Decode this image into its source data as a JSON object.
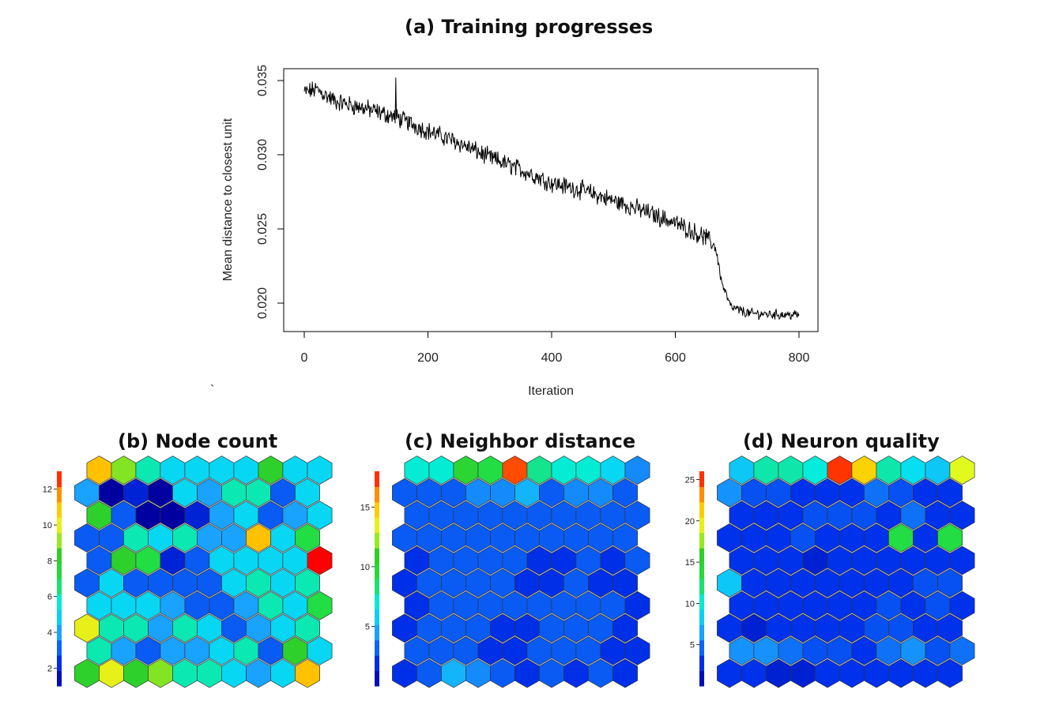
{
  "titles": {
    "a": "(a) Training progresses",
    "b": "(b) Node count",
    "c": "(c) Neighbor distance",
    "d": "(d) Neuron quality"
  },
  "stray_mark": "`",
  "chart_data": [
    {
      "type": "line",
      "title": "(a) Training progresses",
      "xlabel": "Iteration",
      "ylabel": "Mean distance to closest unit",
      "xlim": [
        0,
        800
      ],
      "ylim": [
        0.02,
        0.035
      ],
      "xticks": [
        "0",
        "200",
        "400",
        "600",
        "800"
      ],
      "yticks": [
        "0.020",
        "0.025",
        "0.030",
        "0.035"
      ],
      "color": "#000000",
      "trend": [
        [
          0,
          0.0342
        ],
        [
          20,
          0.0344
        ],
        [
          50,
          0.0336
        ],
        [
          100,
          0.0331
        ],
        [
          150,
          0.0325
        ],
        [
          200,
          0.0316
        ],
        [
          250,
          0.0308
        ],
        [
          300,
          0.0298
        ],
        [
          350,
          0.029
        ],
        [
          400,
          0.0281
        ],
        [
          450,
          0.0276
        ],
        [
          500,
          0.0269
        ],
        [
          550,
          0.0262
        ],
        [
          600,
          0.0254
        ],
        [
          650,
          0.0244
        ],
        [
          665,
          0.0238
        ],
        [
          675,
          0.0214
        ],
        [
          690,
          0.0197
        ],
        [
          720,
          0.0193
        ],
        [
          800,
          0.0192
        ]
      ],
      "noise": 0.0005
    },
    {
      "type": "heatmap",
      "title": "(b) Node count",
      "grid": "hexagonal 10 x 10",
      "scale_ticks": [
        "2",
        "4",
        "6",
        "8",
        "10",
        "12"
      ],
      "scale_range": [
        1,
        13
      ],
      "values": [
        [
          8,
          10,
          8,
          9,
          6,
          6,
          5,
          4,
          5,
          11
        ],
        [
          6,
          4,
          3,
          4,
          4,
          5,
          6,
          3,
          8,
          5
        ],
        [
          10,
          6,
          6,
          4,
          6,
          5,
          3,
          4,
          5,
          6
        ],
        [
          5,
          5,
          5,
          4,
          3,
          3,
          4,
          6,
          5,
          7
        ],
        [
          3,
          5,
          3,
          3,
          3,
          3,
          5,
          6,
          5,
          6
        ],
        [
          3,
          8,
          7,
          2,
          3,
          5,
          5,
          5,
          5,
          13
        ],
        [
          3,
          3,
          6,
          5,
          6,
          4,
          4,
          11,
          5,
          7
        ],
        [
          8,
          3,
          1,
          1,
          2,
          4,
          5,
          3,
          4,
          5
        ],
        [
          4,
          1,
          2,
          1,
          5,
          4,
          6,
          6,
          3,
          5
        ],
        [
          11,
          9,
          6,
          5,
          5,
          5,
          5,
          8,
          5,
          5
        ]
      ]
    },
    {
      "type": "heatmap",
      "title": "(c) Neighbor distance",
      "grid": "hexagonal 10 x 10",
      "scale_ticks": [
        "5",
        "10",
        "15"
      ],
      "scale_range": [
        0,
        18
      ],
      "values": [
        [
          2,
          3,
          5,
          4,
          3,
          2,
          3,
          2,
          3,
          2
        ],
        [
          3,
          3,
          3,
          2,
          2,
          3,
          3,
          3,
          2,
          2
        ],
        [
          2,
          3,
          3,
          3,
          2,
          2,
          3,
          3,
          3,
          2
        ],
        [
          2,
          3,
          3,
          3,
          3,
          3,
          3,
          3,
          3,
          2
        ],
        [
          2,
          3,
          3,
          3,
          3,
          2,
          2,
          3,
          2,
          2
        ],
        [
          2,
          3,
          3,
          3,
          3,
          2,
          2,
          3,
          2,
          3
        ],
        [
          3,
          3,
          3,
          3,
          3,
          3,
          3,
          3,
          3,
          3
        ],
        [
          3,
          3,
          3,
          3,
          3,
          3,
          3,
          3,
          3,
          3
        ],
        [
          3,
          3,
          3,
          4,
          4,
          5,
          3,
          4,
          4,
          3
        ],
        [
          7,
          7,
          10,
          9,
          17,
          8,
          7,
          7,
          6,
          4
        ]
      ]
    },
    {
      "type": "heatmap",
      "title": "(d) Neuron quality",
      "grid": "hexagonal 10 x 10",
      "scale_ticks": [
        "5",
        "10",
        "15",
        "20",
        "25"
      ],
      "scale_range": [
        0,
        26
      ],
      "values": [
        [
          3,
          3,
          2,
          2,
          3,
          3,
          3,
          3,
          3,
          3
        ],
        [
          6,
          6,
          5,
          4,
          4,
          3,
          5,
          6,
          4,
          5
        ],
        [
          3,
          2,
          3,
          3,
          3,
          3,
          4,
          4,
          3,
          3
        ],
        [
          3,
          3,
          3,
          3,
          3,
          3,
          4,
          3,
          4,
          3
        ],
        [
          8,
          3,
          3,
          3,
          3,
          3,
          3,
          3,
          4,
          4
        ],
        [
          3,
          3,
          3,
          2,
          3,
          3,
          3,
          3,
          3,
          3
        ],
        [
          3,
          3,
          3,
          4,
          3,
          3,
          3,
          13,
          3,
          13
        ],
        [
          3,
          3,
          3,
          4,
          4,
          4,
          3,
          5,
          3,
          3
        ],
        [
          6,
          4,
          4,
          3,
          3,
          3,
          5,
          4,
          3,
          3
        ],
        [
          8,
          11,
          11,
          10,
          25,
          21,
          11,
          9,
          8,
          19
        ]
      ]
    }
  ]
}
